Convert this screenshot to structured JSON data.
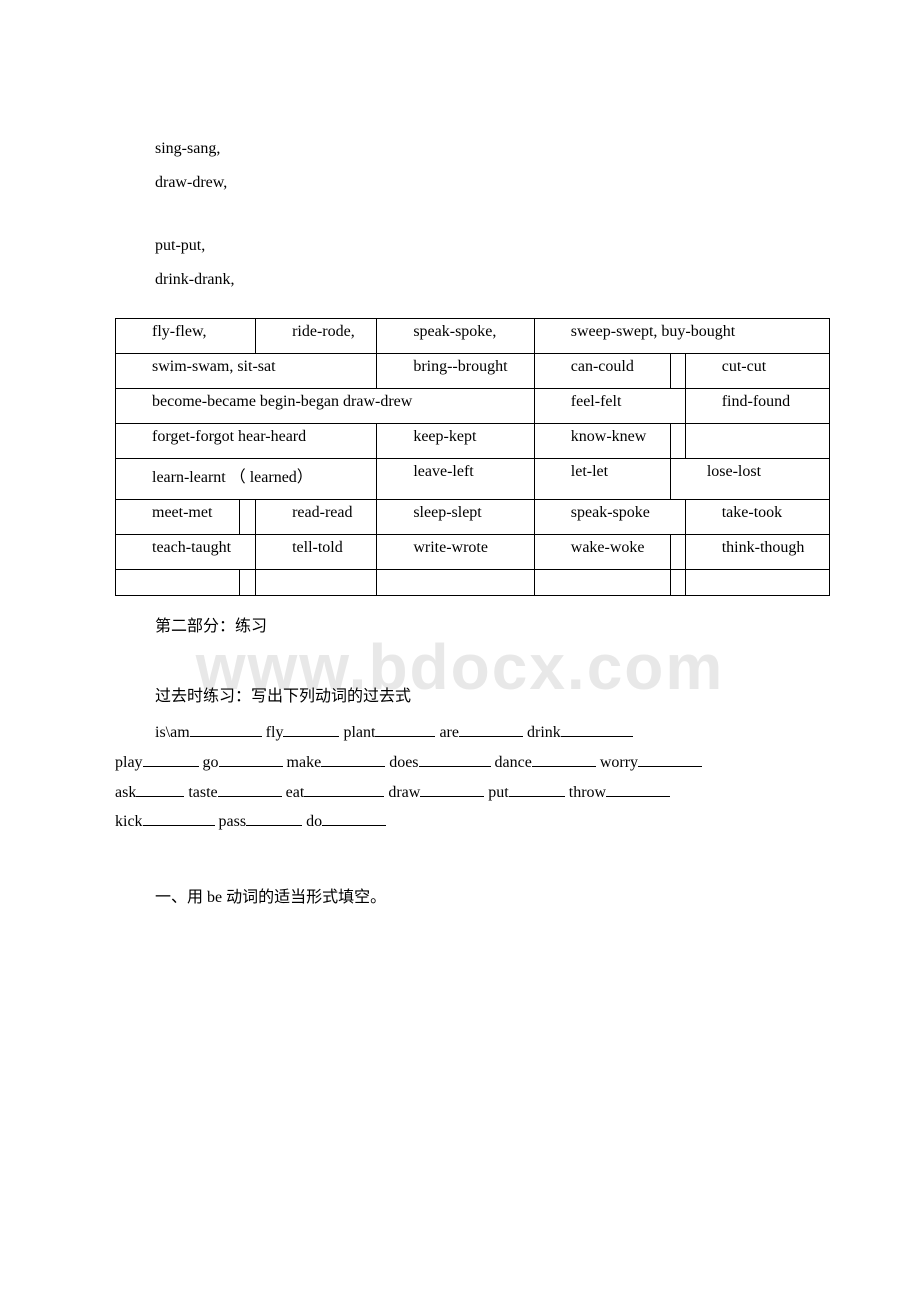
{
  "watermark": "www.bdocx.com",
  "intro_lines": [
    "sing-sang,",
    "draw-drew,",
    "put-put,",
    "drink-drank,"
  ],
  "table": {
    "border_color": "#000000",
    "font_size": 16,
    "rows": [
      {
        "cells": [
          "fly-flew,",
          "ride-rode,",
          "speak-spoke,",
          "sweep-swept, buy-bought"
        ],
        "spans": [
          2,
          2,
          1,
          4
        ]
      },
      {
        "cells": [
          "swim-swam, sit-sat",
          "bring--brought",
          "can-could",
          "",
          "cut-cut"
        ],
        "spans": [
          4,
          1,
          1,
          1,
          2
        ]
      },
      {
        "cells": [
          "become-became begin-began draw-drew",
          "feel-felt",
          "find-found"
        ],
        "spans": [
          5,
          2,
          2
        ]
      },
      {
        "cells": [
          "forget-forgot hear-heard",
          "keep-kept",
          "know-knew",
          "",
          ""
        ],
        "spans": [
          4,
          1,
          1,
          1,
          2
        ]
      },
      {
        "cells": [
          "learn-learnt （ learned）",
          "leave-left",
          "let-let",
          "lose-lost"
        ],
        "spans": [
          4,
          1,
          1,
          3
        ]
      },
      {
        "cells": [
          "meet-met",
          "",
          "read-read",
          "sleep-slept",
          "speak-spoke",
          "take-took"
        ],
        "spans": [
          1,
          1,
          2,
          1,
          2,
          2
        ]
      },
      {
        "cells": [
          "teach-taught",
          "tell-told",
          "write-wrote",
          "wake-woke",
          "",
          "think-though"
        ],
        "spans": [
          2,
          2,
          1,
          1,
          1,
          2
        ]
      },
      {
        "cells": [
          "",
          "",
          "",
          "",
          "",
          "",
          ""
        ],
        "spans": [
          1,
          1,
          2,
          1,
          1,
          1,
          2
        ],
        "filler": true
      }
    ]
  },
  "section2_title": "第二部分：练习",
  "exercise_heading": "过去时练习：写出下列动词的过去式",
  "verb_list": [
    {
      "word": "is\\am",
      "blank_width": 72
    },
    {
      "word": "fly",
      "blank_width": 56
    },
    {
      "word": "plant",
      "blank_width": 60
    },
    {
      "word": "are",
      "blank_width": 64
    },
    {
      "word": "drink",
      "blank_width": 72,
      "break": true
    },
    {
      "word": "play",
      "blank_width": 56,
      "no_indent": true
    },
    {
      "word": "go",
      "blank_width": 64
    },
    {
      "word": "make",
      "blank_width": 64
    },
    {
      "word": "does",
      "blank_width": 72
    },
    {
      "word": "dance",
      "blank_width": 64
    },
    {
      "word": "worry",
      "blank_width": 64,
      "break": true
    },
    {
      "word": "ask",
      "blank_width": 48,
      "no_indent": true
    },
    {
      "word": "taste",
      "blank_width": 64
    },
    {
      "word": "eat",
      "blank_width": 80
    },
    {
      "word": "draw",
      "blank_width": 64
    },
    {
      "word": "put",
      "blank_width": 56
    },
    {
      "word": "throw",
      "blank_width": 64,
      "break": true
    },
    {
      "word": "kick",
      "blank_width": 72,
      "no_indent": true
    },
    {
      "word": "pass",
      "blank_width": 56
    },
    {
      "word": "do",
      "blank_width": 64
    }
  ],
  "section_be": "一、用 be 动词的适当形式填空。"
}
